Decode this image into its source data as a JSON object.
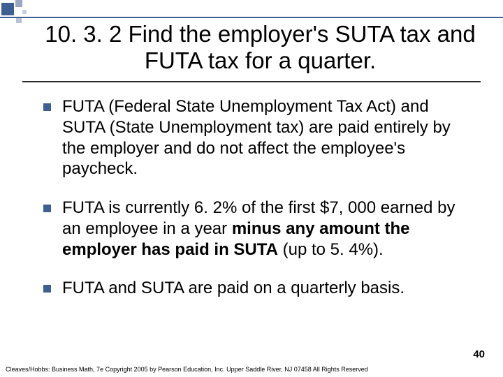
{
  "decoration": {
    "accent_color": "#3e5f91",
    "light_accent_1": "#98a7c4",
    "light_accent_2": "#c8d0e0",
    "light_accent_3": "#b8c3d9",
    "rule_color": "#2a2a2a"
  },
  "title": "10. 3. 2 Find the employer's SUTA tax and FUTA tax for a quarter.",
  "bullets": [
    {
      "text": "FUTA (Federal State Unemployment Tax Act) and SUTA (State Unemployment tax) are paid entirely by the employer and do not affect the employee's paycheck."
    },
    {
      "prefix": "FUTA is currently 6. 2% of the first $7, 000 earned by an employee in a year ",
      "bold": "minus any amount the employer has paid in SUTA",
      "suffix": " (up to 5. 4%)."
    },
    {
      "text": "FUTA and SUTA are paid on a quarterly basis."
    }
  ],
  "page_number": "40",
  "footer": "Cleaves/Hobbs: Business Math, 7e  Copyright 2005 by Pearson Education, Inc. Upper Saddle River, NJ 07458  All Rights Reserved"
}
